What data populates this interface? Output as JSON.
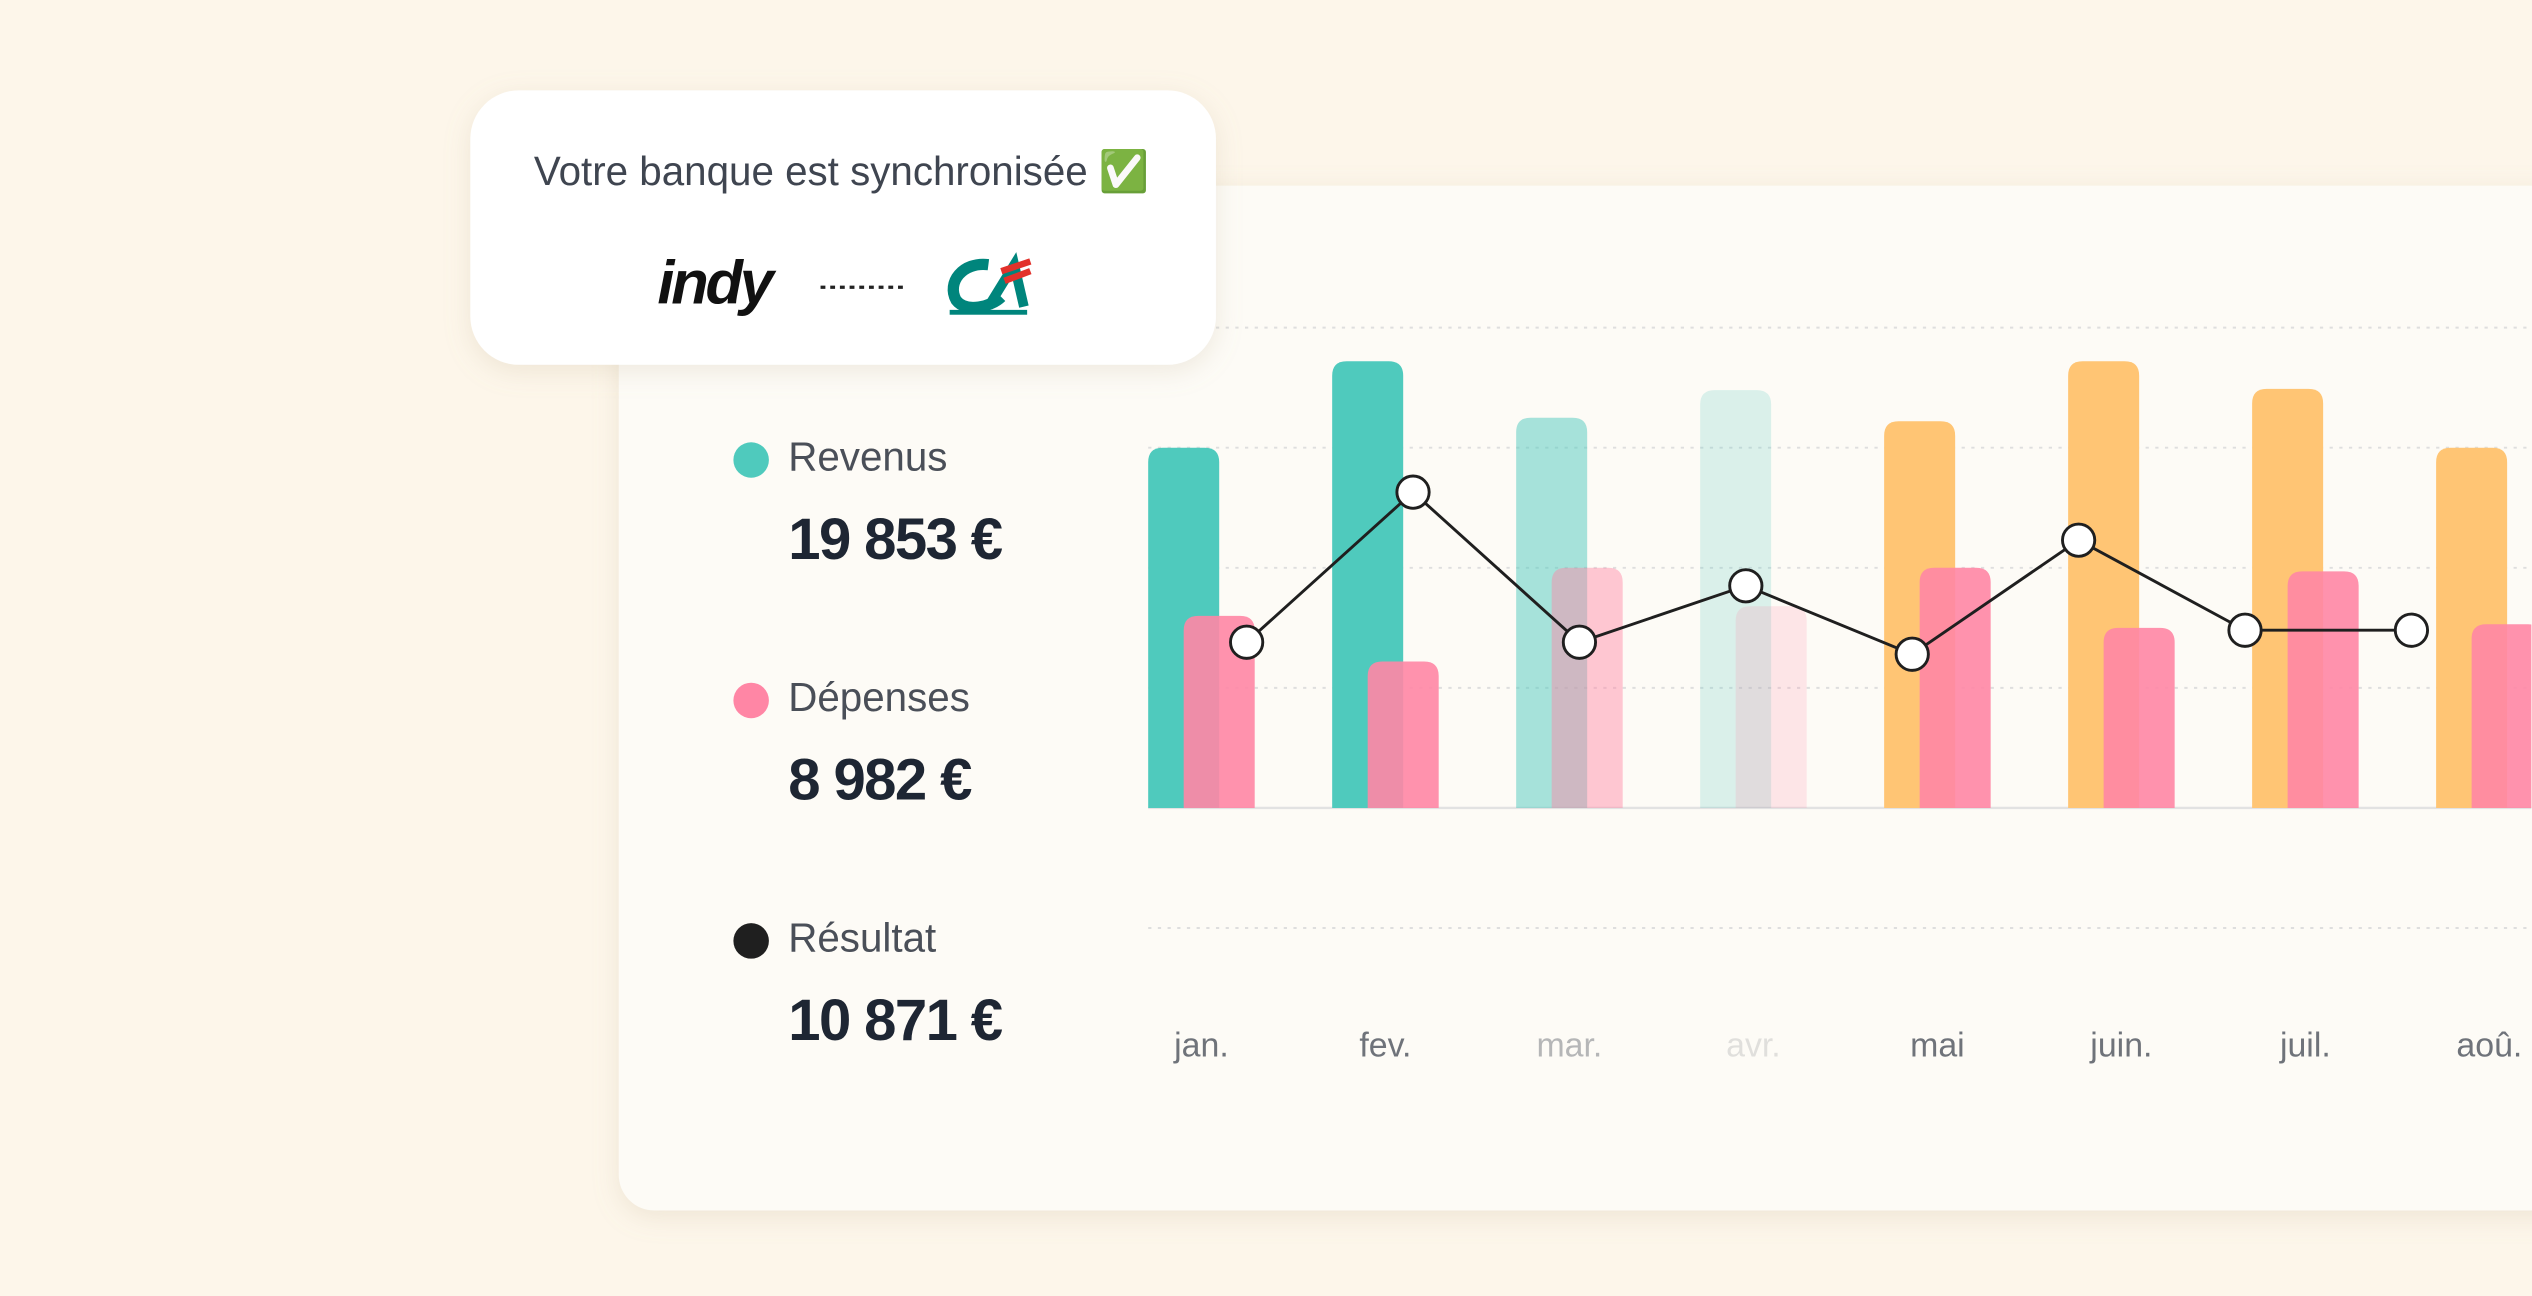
{
  "sync_card": {
    "title": "Votre banque est synchronisée ✅",
    "brand": "indy"
  },
  "chart_data": {
    "type": "bar-line",
    "categories": [
      "jan.",
      "fev.",
      "mar.",
      "avr.",
      "mai",
      "juin.",
      "juil.",
      "aoû."
    ],
    "category_opacity": [
      1,
      1,
      0.5,
      0.2,
      1,
      1,
      1,
      1
    ],
    "ylim": [
      -1,
      4
    ],
    "yticks": [
      -1,
      0,
      1,
      2,
      3,
      4
    ],
    "grid": true,
    "series": [
      {
        "name": "Revenus",
        "total_label": "19 853 €",
        "color": "#4fcabd",
        "colors": [
          "#4fcabd",
          "#4fcabd",
          "#4fcabd",
          "#4fcabd",
          "#ffc574",
          "#ffc574",
          "#ffc574",
          "#ffc574"
        ],
        "values": [
          3.0,
          3.72,
          3.25,
          3.48,
          3.22,
          3.72,
          3.49,
          3.0
        ]
      },
      {
        "name": "Dépenses",
        "total_label": "8 982 €",
        "color": "#ff86a5",
        "values": [
          1.6,
          1.22,
          2.0,
          1.68,
          2.0,
          1.5,
          1.97,
          1.53
        ]
      },
      {
        "name": "Résultat",
        "total_label": "10 871 €",
        "color": "#1f1f1f",
        "values": [
          1.38,
          2.63,
          1.38,
          1.85,
          1.28,
          2.23,
          1.48,
          1.48
        ]
      }
    ]
  }
}
